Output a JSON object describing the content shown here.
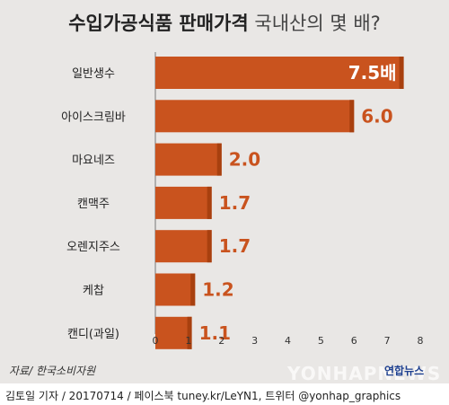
{
  "title_bold": "수입가공식품 판매가격",
  "title_light": "국내산의 몇 배?",
  "source": "자료/ 한국소비자원",
  "footer": "김토일 기자 / 20170714 / 페이스북 tuney.kr/LeYN1, 트위터 @yonhap_graphics",
  "logo": "연합뉴스",
  "watermark": "YONHAPNEWS",
  "colors": {
    "bar": "#c9531e",
    "bar_edge": "#a8400f",
    "value": "#c9531e",
    "first_value": "#ffffff"
  },
  "chart_data": {
    "type": "bar",
    "orientation": "horizontal",
    "categories": [
      "일반생수",
      "아이스크림바",
      "마요네즈",
      "캔맥주",
      "오렌지주스",
      "케찹",
      "캔디(과일)"
    ],
    "values": [
      7.5,
      6.0,
      2.0,
      1.7,
      1.7,
      1.2,
      1.1
    ],
    "value_labels": [
      "7.5배",
      "6.0",
      "2.0",
      "1.7",
      "1.7",
      "1.2",
      "1.1"
    ],
    "xlim": [
      0,
      8
    ],
    "xticks": [
      "0",
      "1",
      "2",
      "3",
      "4",
      "5",
      "6",
      "7",
      "8"
    ],
    "grid": false,
    "legend": "none"
  }
}
